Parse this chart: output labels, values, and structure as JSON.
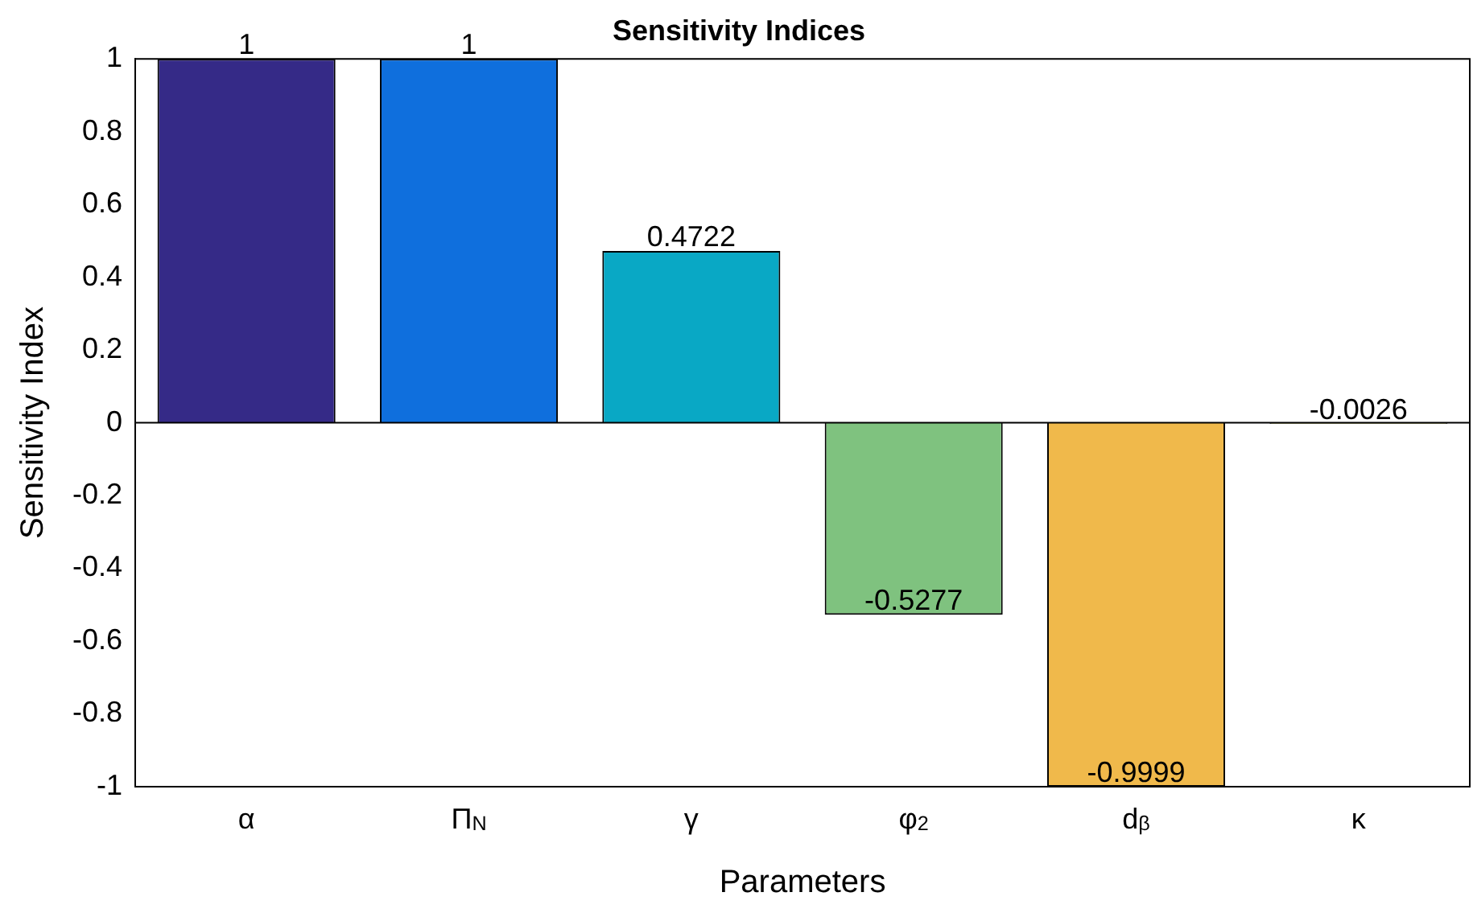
{
  "chart_data": {
    "type": "bar",
    "title": "Sensitivity Indices",
    "xlabel": "Parameters",
    "ylabel": "Sensitivity Index",
    "categories": [
      "α",
      "Π$_{N}$",
      "γ",
      "φ$_{2}$",
      "d$_{β}$",
      "κ"
    ],
    "values": [
      1,
      1,
      0.4722,
      -0.5277,
      -0.9999,
      -0.0026
    ],
    "colors": [
      "#352a87",
      "#0f6fdd",
      "#09a8c5",
      "#7fc27f",
      "#f0b94b",
      "#f9fb0e"
    ],
    "ylim": [
      -1,
      1
    ],
    "yticks": [
      -1,
      -0.8,
      -0.6,
      -0.4,
      -0.2,
      0,
      0.2,
      0.4,
      0.6,
      0.8,
      1
    ],
    "ref_lines": [
      {
        "axis": "y",
        "value": 0,
        "color": "#000000"
      }
    ],
    "grid": false,
    "legend": false,
    "data_labels": true
  }
}
